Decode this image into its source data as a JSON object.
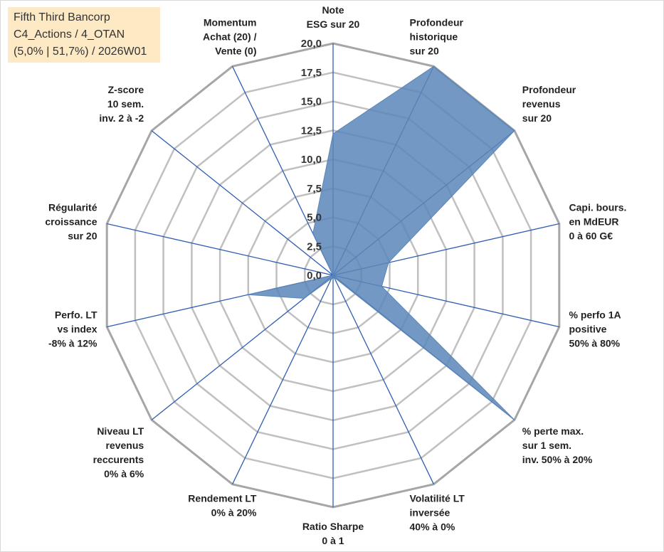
{
  "title_box": {
    "line1": "Fifth Third Bancorp",
    "line2": "C4_Actions / 4_OTAN",
    "line3": "(5,0% | 51,7%) / 2026W01"
  },
  "chart_data": {
    "type": "radar",
    "axes": [
      {
        "label": [
          "Note",
          "ESG sur 20"
        ]
      },
      {
        "label": [
          "Profondeur",
          "historique",
          "sur 20"
        ]
      },
      {
        "label": [
          "Profondeur",
          "revenus",
          "sur 20"
        ]
      },
      {
        "label": [
          "Capi. bours.",
          "en MdEUR",
          "0 à 60 G€"
        ]
      },
      {
        "label": [
          "% perfo 1A",
          "positive",
          "50% à 80%"
        ]
      },
      {
        "label": [
          "% perte max.",
          "sur 1 sem.",
          "inv. 50% à 20%"
        ]
      },
      {
        "label": [
          "Volatilité LT",
          "inversée",
          "40% à 0%"
        ]
      },
      {
        "label": [
          "Ratio Sharpe",
          "0 à 1"
        ]
      },
      {
        "label": [
          "Rendement LT",
          "0% à 20%"
        ]
      },
      {
        "label": [
          "Niveau LT",
          "revenus",
          "reccurents",
          "0% à 6%"
        ]
      },
      {
        "label": [
          "Perfo. LT",
          "vs index",
          "-8% à 12%"
        ]
      },
      {
        "label": [
          "Régularité",
          "croissance",
          "sur 20"
        ]
      },
      {
        "label": [
          "Z-score",
          "10 sem.",
          "inv. 2 à -2"
        ]
      },
      {
        "label": [
          "Momentum",
          "Achat (20) /",
          "Vente (0)"
        ]
      }
    ],
    "series": [
      {
        "values": [
          12.2,
          20.0,
          20.0,
          4.9,
          4.3,
          20.0,
          0.2,
          0.3,
          0.3,
          3.2,
          7.5,
          0.0,
          0.0,
          4.0
        ]
      }
    ],
    "r_range": [
      0,
      20
    ],
    "tick_labels": [
      "0,0",
      "2,5",
      "5,0",
      "7,5",
      "10,0",
      "12,5",
      "15,0",
      "17,5",
      "20,0"
    ],
    "grid": true,
    "legend": "none",
    "colors": {
      "fill": "#5b86b8",
      "spoke": "#2f5fb0",
      "grid": "#c0c0c0",
      "outer": "#a6a6a6"
    }
  }
}
